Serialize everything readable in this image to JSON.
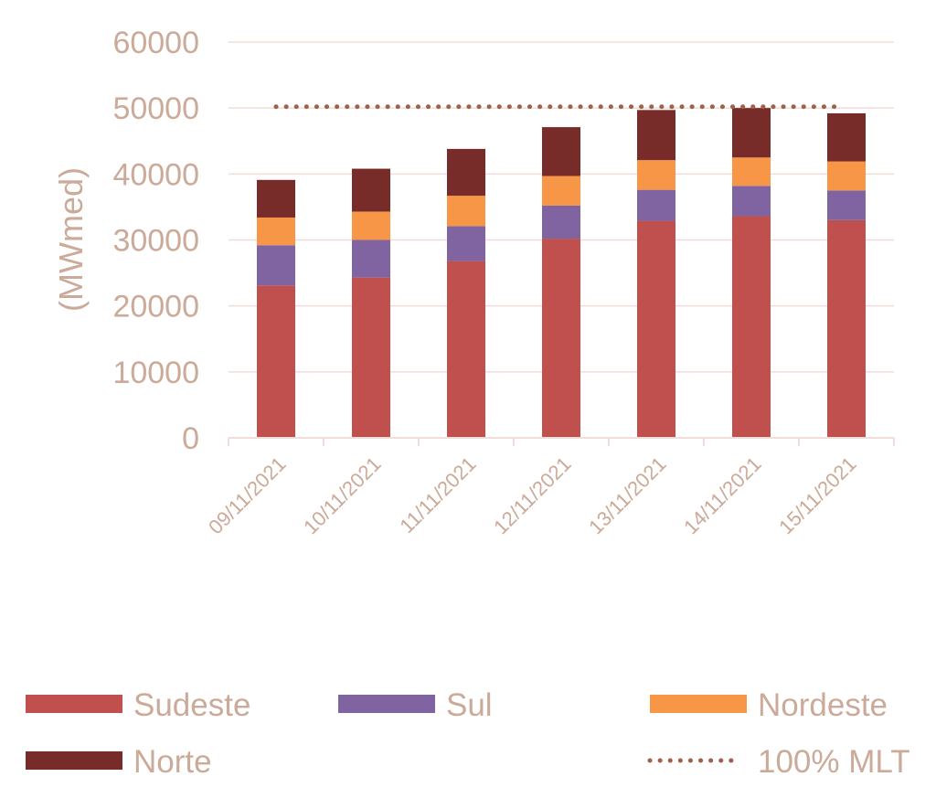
{
  "chart_data": {
    "type": "bar",
    "stacked": true,
    "title": "",
    "xlabel": "",
    "ylabel": "(MWmed)",
    "ylim": [
      0,
      60000
    ],
    "yticks": [
      0,
      10000,
      20000,
      30000,
      40000,
      50000,
      60000
    ],
    "ytick_labels": [
      "0",
      "10000",
      "20000",
      "30000",
      "40000",
      "50000",
      "60000"
    ],
    "grid": true,
    "legend_position": "bottom",
    "categories": [
      "09/11/2021",
      "10/11/2021",
      "11/11/2021",
      "12/11/2021",
      "13/11/2021",
      "14/11/2021",
      "15/11/2021"
    ],
    "series": [
      {
        "name": "Sudeste",
        "color": "#c0504d",
        "values": [
          23100,
          24300,
          26800,
          30200,
          32900,
          33600,
          33000
        ]
      },
      {
        "name": "Sul",
        "color": "#8064a2",
        "values": [
          6100,
          5700,
          5300,
          5000,
          4700,
          4600,
          4500
        ]
      },
      {
        "name": "Nordeste",
        "color": "#f79646",
        "values": [
          4200,
          4300,
          4600,
          4500,
          4500,
          4300,
          4400
        ]
      },
      {
        "name": "Norte",
        "color": "#772c2a",
        "values": [
          5700,
          6500,
          7100,
          7400,
          7600,
          7500,
          7300
        ]
      }
    ],
    "reference_line": {
      "name": "100% MLT",
      "value": 50200,
      "color": "#a0604a",
      "style": "dotted"
    },
    "text_color": "#cbaa99",
    "grid_color": "#f0dcd8"
  }
}
